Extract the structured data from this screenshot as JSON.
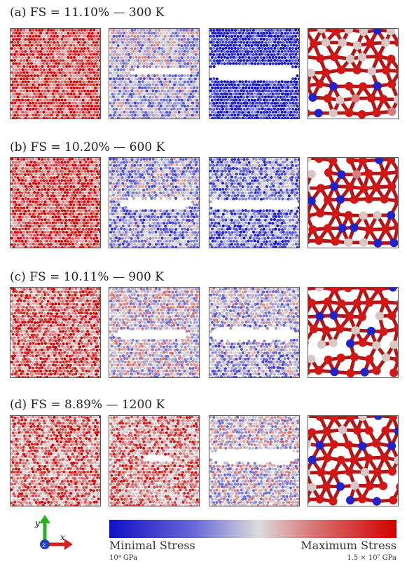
{
  "rows": [
    {
      "label": "(a) FS = 11.10% — 300 K",
      "fs_percent": 11.1,
      "temperature_K": 300
    },
    {
      "label": "(b) FS = 10.20% — 600 K",
      "fs_percent": 10.2,
      "temperature_K": 600
    },
    {
      "label": "(c) FS = 10.11% — 900 K",
      "fs_percent": 10.11,
      "temperature_K": 900
    },
    {
      "label": "(d) FS = 8.89% — 1200 K",
      "fs_percent": 8.89,
      "temperature_K": 1200
    }
  ],
  "axes": {
    "y": "y",
    "x": "x",
    "z": "z"
  },
  "colors": {
    "min": "#1010c8",
    "mid": "#dcdcdc",
    "max": "#d20000",
    "axis_y": "#20b020",
    "axis_x": "#d02020",
    "axis_z": "#2040c0"
  },
  "colorbar": {
    "min_label": "Minimal Stress",
    "max_label": "Maximum Stress",
    "min_value": "10⁴ GPa",
    "max_value": "1.5 × 10⁷ GPa"
  }
}
